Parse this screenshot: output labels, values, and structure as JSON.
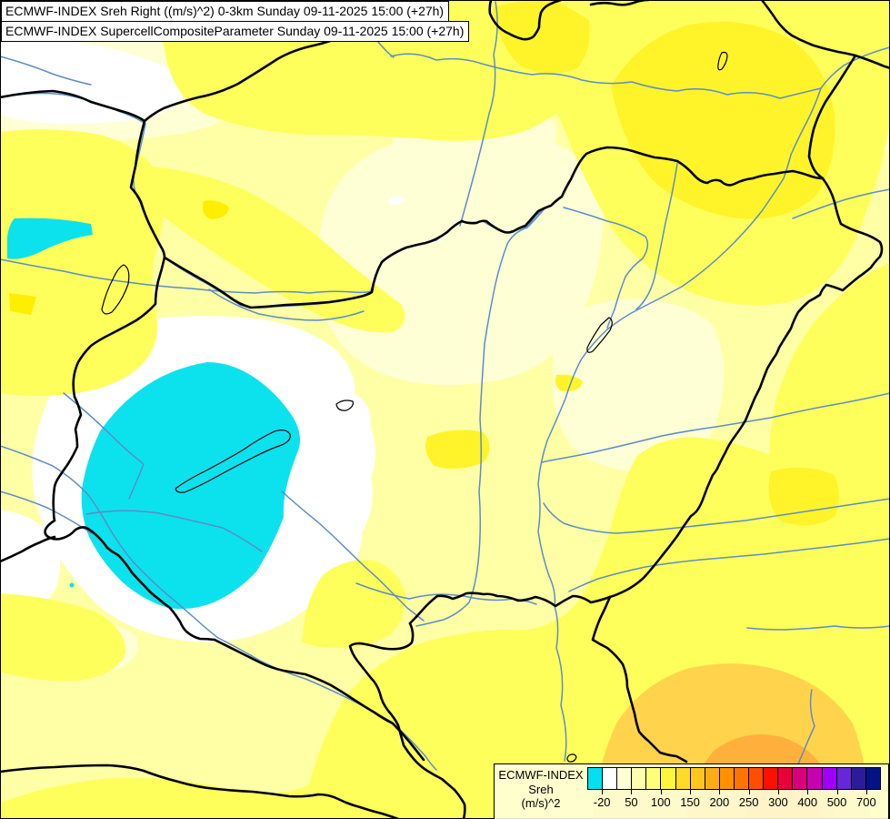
{
  "title_box": {
    "line1": "ECMWF-INDEX Sreh Right ((m/s)^2) 0-3km Sunday 09-11-2025 15:00 (+27h)",
    "line2": "ECMWF-INDEX SupercellCompositeParameter Sunday 09-11-2025 15:00 (+27h)"
  },
  "legend": {
    "title": "ECMWF-INDEX",
    "param": "Sreh",
    "units": "(m/s)^2",
    "colorbar_colors": [
      "#00E0F0",
      "#FFFFFF",
      "#FFFFD5",
      "#FFFFAC",
      "#FFFF7C",
      "#FFF63C",
      "#FFDB28",
      "#FFC61E",
      "#FFAC14",
      "#FF9000",
      "#FF7400",
      "#FF4E00",
      "#FF0F00",
      "#E8003C",
      "#D8007C",
      "#C800B4",
      "#A000F8",
      "#6428D8",
      "#2C1C9C",
      "#001488"
    ],
    "ticks": [
      {
        "label": "-20",
        "boundary": 1
      },
      {
        "label": "50",
        "boundary": 3
      },
      {
        "label": "100",
        "boundary": 5
      },
      {
        "label": "150",
        "boundary": 7
      },
      {
        "label": "200",
        "boundary": 9
      },
      {
        "label": "250",
        "boundary": 11
      },
      {
        "label": "300",
        "boundary": 13
      },
      {
        "label": "400",
        "boundary": 15
      },
      {
        "label": "500",
        "boundary": 17
      },
      {
        "label": "700",
        "boundary": 19
      }
    ]
  },
  "map": {
    "palette": {
      "base": "#FFFFA6",
      "bright": "#FFFF5C",
      "vivid": "#FFF42A",
      "spot": "#FFEE00",
      "cream": "#FFFFD6",
      "white": "#FFFFFF",
      "cyan": "#0CE2EE",
      "gold": "#FFD44C",
      "orange": "#FFB03C",
      "deep_orange": "#FF9F2E",
      "river": "#5C8CC8",
      "border": "#000000"
    }
  }
}
